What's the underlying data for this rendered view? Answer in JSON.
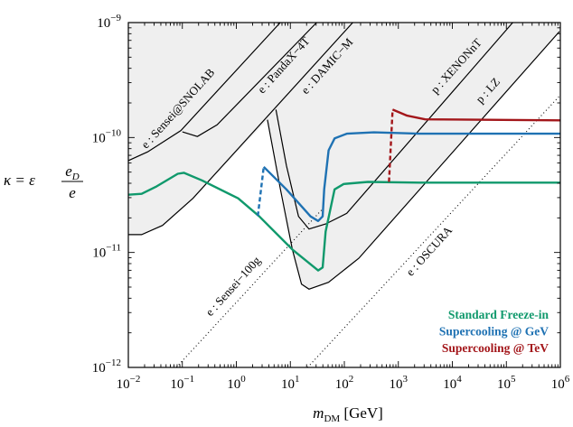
{
  "chart_data": {
    "type": "line",
    "xscale": "log",
    "yscale": "log",
    "xlim": [
      0.01,
      1000000
    ],
    "ylim": [
      1e-12,
      1e-09
    ],
    "xlabel": {
      "main": "m",
      "sub": "DM",
      "unit": " [GeV]"
    },
    "ylabel": {
      "lhs": "κ = ε",
      "num_main": "e",
      "num_sub": "D",
      "den": "e"
    },
    "x_ticks": [
      {
        "base": "10",
        "exp": "−2"
      },
      {
        "base": "10",
        "exp": "−1"
      },
      {
        "base": "10",
        "exp": "0"
      },
      {
        "base": "10",
        "exp": "1"
      },
      {
        "base": "10",
        "exp": "2"
      },
      {
        "base": "10",
        "exp": "3"
      },
      {
        "base": "10",
        "exp": "4"
      },
      {
        "base": "10",
        "exp": "5"
      },
      {
        "base": "10",
        "exp": "6"
      }
    ],
    "y_ticks": [
      {
        "base": "10",
        "exp": "−9"
      },
      {
        "base": "10",
        "exp": "−10"
      },
      {
        "base": "10",
        "exp": "−11"
      },
      {
        "base": "10",
        "exp": "−12"
      }
    ],
    "grid": false,
    "legend_position": "bottom-right",
    "colors": {
      "shade": "#efefef",
      "freezein": "#10996c",
      "gev": "#1f72b3",
      "tev": "#a3161a",
      "bound": "#000000"
    },
    "bounds": [
      {
        "label": "e : Sensei@SNOLAB",
        "style": "solid",
        "points": [
          [
            0.01,
            6.3e-11
          ],
          [
            0.0228,
            7.5e-11
          ],
          [
            0.094,
            1.15e-10
          ],
          [
            6.5,
            1e-09
          ]
        ]
      },
      {
        "label": "e : PandaX−4T",
        "style": "solid",
        "points": [
          [
            0.1,
            1.12e-10
          ],
          [
            0.19,
            1.02e-10
          ],
          [
            0.44,
            1.29e-10
          ],
          [
            30.6,
            1e-09
          ]
        ]
      },
      {
        "label": "e : DAMIC−M",
        "style": "solid",
        "points": [
          [
            0.01,
            1.43e-11
          ],
          [
            0.0176,
            1.43e-11
          ],
          [
            0.043,
            1.72e-11
          ],
          [
            0.157,
            2.96e-11
          ],
          [
            143,
            1e-09
          ]
        ]
      },
      {
        "label": "p : XENONnT",
        "style": "solid",
        "points": [
          [
            5.4,
            1.75e-10
          ],
          [
            8.45,
            5.7e-11
          ],
          [
            14.2,
            2.06e-11
          ],
          [
            22.2,
            1.6e-11
          ],
          [
            45,
            1.77e-11
          ],
          [
            111,
            2.19e-11
          ],
          [
            131000,
            1e-09
          ]
        ]
      },
      {
        "label": "p : LZ",
        "style": "solid",
        "points": [
          [
            3.76,
            1.43e-10
          ],
          [
            6.55,
            3.54e-11
          ],
          [
            10.9,
            1.06e-11
          ],
          [
            16.1,
            5.3e-12
          ],
          [
            22.2,
            4.8e-12
          ],
          [
            51,
            5.5e-12
          ],
          [
            185,
            8.9e-12
          ],
          [
            960000,
            8.35e-10
          ]
        ]
      },
      {
        "label": "e : Sensei−100g",
        "style": "dotted",
        "points": [
          [
            0.0773,
            1e-12
          ],
          [
            39.6,
            2.4e-11
          ]
        ]
      },
      {
        "label": "e : OSCURA",
        "style": "dotted",
        "points": [
          [
            20.8,
            1e-12
          ],
          [
            960000,
            2.29e-10
          ]
        ]
      }
    ],
    "series": [
      {
        "name": "Standard Freeze-in",
        "color_key": "freezein",
        "segments": [
          {
            "style": "solid",
            "points": [
              [
                0.01,
                3.18e-11
              ],
              [
                0.0176,
                3.24e-11
              ],
              [
                0.0335,
                3.76e-11
              ],
              [
                0.0824,
                4.84e-11
              ],
              [
                0.1067,
                4.93e-11
              ],
              [
                0.2307,
                4.24e-11
              ],
              [
                1.08,
                2.96e-11
              ],
              [
                2.66,
                2.06e-11
              ],
              [
                10.9,
                1.06e-11
              ],
              [
                32.7,
                6.97e-12
              ],
              [
                39.6,
                7.4e-12
              ],
              [
                45,
                1.52e-11
              ],
              [
                66,
                3.54e-11
              ],
              [
                97.5,
                3.94e-11
              ],
              [
                273,
                4.11e-11
              ],
              [
                2430,
                4.05e-11
              ],
              [
                1000000,
                4.05e-11
              ]
            ]
          }
        ]
      },
      {
        "name": "Supercooling @ GeV",
        "color_key": "gev",
        "segments": [
          {
            "style": "dashed",
            "points": [
              [
                2.5,
                2.08e-11
              ],
              [
                3.22,
                5.56e-11
              ]
            ]
          },
          {
            "style": "solid",
            "points": [
              [
                3.22,
                5.56e-11
              ],
              [
                8.45,
                3.54e-11
              ],
              [
                23.7,
                2.06e-11
              ],
              [
                32.7,
                1.88e-11
              ],
              [
                39.6,
                2.06e-11
              ],
              [
                42.3,
                3.54e-11
              ],
              [
                51.2,
                7.74e-11
              ],
              [
                66.2,
                9.84e-11
              ],
              [
                111,
                1.08e-10
              ],
              [
                353,
                1.11e-10
              ],
              [
                2430,
                1.08e-10
              ],
              [
                1000000,
                1.08e-10
              ]
            ]
          }
        ]
      },
      {
        "name": "Supercooling @ TeV",
        "color_key": "tev",
        "segments": [
          {
            "style": "dashed",
            "points": [
              [
                671,
                4.11e-11
              ],
              [
                783,
                1.75e-10
              ]
            ]
          },
          {
            "style": "solid",
            "points": [
              [
                783,
                1.75e-10
              ],
              [
                1452,
                1.55e-10
              ],
              [
                3140,
                1.44e-10
              ],
              [
                1000000,
                1.41e-10
              ]
            ]
          }
        ]
      }
    ]
  }
}
